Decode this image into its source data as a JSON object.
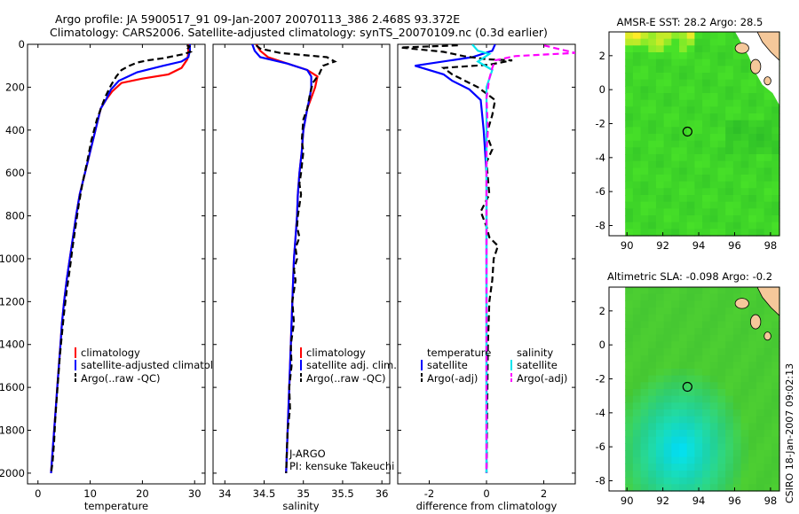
{
  "header": {
    "line1": "Argo profile: JA 5900517_91 09-Jan-2007 20070113_386 2.468S 93.372E",
    "line2": "Climatology: CARS2006. Satellite-adjusted climatology: synTS_20070109.nc (0.3d earlier)"
  },
  "footer": {
    "stamp": "CSIRO 18-Jan-2007 09:02:13"
  },
  "colors": {
    "climatology": "#ff0000",
    "satellite": "#0000ff",
    "argo": "#000000",
    "sal_satellite": "#00e5ee",
    "sal_argo": "#ff00ff"
  },
  "chart_data": [
    {
      "id": "temperature",
      "type": "line",
      "xlabel": "temperature",
      "xlim": [
        -2,
        32
      ],
      "ylim": [
        2050,
        0
      ],
      "xticks": [
        0,
        10,
        20,
        30
      ],
      "yticks": [
        0,
        200,
        400,
        600,
        800,
        1000,
        1200,
        1400,
        1600,
        1800,
        2000
      ],
      "legend": {
        "placement": "bottom-right",
        "entries": [
          "climatology",
          "satellite-adjusted climatology",
          "Argo(..raw -QC)"
        ]
      },
      "series": [
        {
          "name": "climatology",
          "color": "#ff0000",
          "style": "solid",
          "points": [
            [
              28.8,
              0
            ],
            [
              28.8,
              40
            ],
            [
              28.6,
              70
            ],
            [
              27.5,
              110
            ],
            [
              25,
              140
            ],
            [
              20,
              160
            ],
            [
              16,
              180
            ],
            [
              14.2,
              220
            ],
            [
              13,
              260
            ],
            [
              12,
              300
            ],
            [
              11,
              400
            ],
            [
              10,
              500
            ],
            [
              9,
              600
            ],
            [
              8,
              700
            ],
            [
              7.3,
              800
            ],
            [
              6.7,
              900
            ],
            [
              6.1,
              1000
            ],
            [
              5.5,
              1100
            ],
            [
              5,
              1200
            ],
            [
              4.6,
              1300
            ],
            [
              4.3,
              1400
            ],
            [
              4,
              1500
            ],
            [
              3.7,
              1600
            ],
            [
              3.4,
              1700
            ],
            [
              3.1,
              1800
            ],
            [
              2.8,
              1900
            ],
            [
              2.5,
              2000
            ]
          ]
        },
        {
          "name": "satellite",
          "color": "#0000ff",
          "style": "solid",
          "points": [
            [
              29.1,
              0
            ],
            [
              29.1,
              30
            ],
            [
              28.8,
              60
            ],
            [
              27.5,
              80
            ],
            [
              24,
              100
            ],
            [
              19,
              130
            ],
            [
              15.5,
              170
            ],
            [
              14,
              210
            ],
            [
              13,
              260
            ],
            [
              12,
              300
            ],
            [
              11,
              400
            ],
            [
              10,
              500
            ],
            [
              9,
              600
            ],
            [
              8,
              700
            ],
            [
              7.3,
              800
            ],
            [
              6.7,
              900
            ],
            [
              6.1,
              1000
            ],
            [
              5.5,
              1100
            ],
            [
              5,
              1200
            ],
            [
              4.6,
              1300
            ],
            [
              4.3,
              1400
            ],
            [
              4,
              1500
            ],
            [
              3.7,
              1600
            ],
            [
              3.4,
              1700
            ],
            [
              3.1,
              1800
            ],
            [
              2.8,
              1900
            ],
            [
              2.5,
              2000
            ]
          ]
        },
        {
          "name": "Argo(..raw -QC)",
          "color": "#000000",
          "style": "dashed",
          "points": [
            [
              28.5,
              5
            ],
            [
              29,
              10
            ],
            [
              28.5,
              25
            ],
            [
              29.2,
              35
            ],
            [
              28,
              45
            ],
            [
              26,
              55
            ],
            [
              24,
              65
            ],
            [
              21,
              75
            ],
            [
              19,
              85
            ],
            [
              17.5,
              100
            ],
            [
              16,
              120
            ],
            [
              15,
              150
            ],
            [
              14,
              190
            ],
            [
              13,
              240
            ],
            [
              12.5,
              270
            ],
            [
              11.3,
              350
            ],
            [
              10.2,
              450
            ],
            [
              9.4,
              550
            ],
            [
              8.5,
              650
            ],
            [
              7.8,
              750
            ],
            [
              7.2,
              850
            ],
            [
              6.6,
              950
            ],
            [
              6.1,
              1050
            ],
            [
              5.5,
              1150
            ],
            [
              5,
              1250
            ],
            [
              4.6,
              1350
            ],
            [
              4.2,
              1450
            ],
            [
              3.9,
              1550
            ],
            [
              3.6,
              1650
            ],
            [
              3.3,
              1750
            ],
            [
              3.1,
              1850
            ],
            [
              2.8,
              1950
            ],
            [
              2.5,
              2000
            ]
          ]
        }
      ]
    },
    {
      "id": "salinity",
      "type": "line",
      "xlabel": "salinity",
      "xlim": [
        33.85,
        36.1
      ],
      "ylim": [
        2050,
        0
      ],
      "xticks": [
        34,
        34.5,
        35,
        35.5,
        36
      ],
      "xticklabels": [
        "34",
        "34.5",
        "35",
        "35.5",
        "36"
      ],
      "legend": {
        "placement": "bottom-right",
        "entries": [
          "climatology",
          "satellite adj. clim.",
          "Argo(..raw -QC)"
        ]
      },
      "annotation": [
        "J-ARGO",
        "PI: kensuke Takeuchi"
      ],
      "series": [
        {
          "name": "climatology",
          "color": "#ff0000",
          "style": "solid",
          "points": [
            [
              34.4,
              0
            ],
            [
              34.45,
              30
            ],
            [
              34.55,
              60
            ],
            [
              34.8,
              90
            ],
            [
              35.05,
              120
            ],
            [
              35.18,
              150
            ],
            [
              35.15,
              200
            ],
            [
              35.1,
              250
            ],
            [
              35.05,
              300
            ],
            [
              35,
              400
            ],
            [
              34.98,
              500
            ],
            [
              34.95,
              600
            ],
            [
              34.93,
              700
            ],
            [
              34.92,
              800
            ],
            [
              34.9,
              900
            ],
            [
              34.88,
              1000
            ],
            [
              34.86,
              1200
            ],
            [
              34.84,
              1400
            ],
            [
              34.82,
              1600
            ],
            [
              34.8,
              1800
            ],
            [
              34.78,
              2000
            ]
          ]
        },
        {
          "name": "satellite",
          "color": "#0000ff",
          "style": "solid",
          "points": [
            [
              34.35,
              0
            ],
            [
              34.38,
              30
            ],
            [
              34.45,
              60
            ],
            [
              34.8,
              90
            ],
            [
              35.05,
              120
            ],
            [
              35.1,
              150
            ],
            [
              35.1,
              200
            ],
            [
              35.08,
              250
            ],
            [
              35.05,
              300
            ],
            [
              35,
              400
            ],
            [
              34.98,
              500
            ],
            [
              34.95,
              600
            ],
            [
              34.93,
              700
            ],
            [
              34.92,
              800
            ],
            [
              34.9,
              900
            ],
            [
              34.88,
              1000
            ],
            [
              34.86,
              1200
            ],
            [
              34.84,
              1400
            ],
            [
              34.82,
              1600
            ],
            [
              34.8,
              1800
            ],
            [
              34.78,
              2000
            ]
          ]
        },
        {
          "name": "Argo(..raw -QC)",
          "color": "#000000",
          "style": "dashed",
          "points": [
            [
              34.4,
              5
            ],
            [
              34.45,
              20
            ],
            [
              34.7,
              40
            ],
            [
              35.3,
              60
            ],
            [
              35.4,
              80
            ],
            [
              35.25,
              100
            ],
            [
              35.2,
              140
            ],
            [
              35.12,
              180
            ],
            [
              35.08,
              240
            ],
            [
              35.05,
              300
            ],
            [
              35,
              350
            ],
            [
              34.98,
              450
            ],
            [
              35,
              500
            ],
            [
              34.97,
              600
            ],
            [
              34.95,
              650
            ],
            [
              34.97,
              700
            ],
            [
              34.93,
              800
            ],
            [
              34.92,
              850
            ],
            [
              34.95,
              900
            ],
            [
              34.9,
              950
            ],
            [
              34.92,
              1000
            ],
            [
              34.88,
              1050
            ],
            [
              34.9,
              1100
            ],
            [
              34.86,
              1200
            ],
            [
              34.88,
              1300
            ],
            [
              34.84,
              1400
            ],
            [
              34.85,
              1500
            ],
            [
              34.82,
              1600
            ],
            [
              34.83,
              1700
            ],
            [
              34.8,
              1800
            ],
            [
              34.79,
              1900
            ],
            [
              34.78,
              2000
            ]
          ]
        }
      ]
    },
    {
      "id": "difference",
      "type": "line",
      "xlabel": "difference from climatology",
      "xlim": [
        -3.1,
        3.1
      ],
      "ylim": [
        2050,
        0
      ],
      "xticks": [
        -2,
        0,
        2
      ],
      "legend": {
        "placement": "bottom",
        "entries": [
          "temperature",
          "satellite",
          "Argo(-adj)",
          "salinity",
          "satellite",
          "Argo(-adj)"
        ]
      },
      "series": [
        {
          "name": "temperature satellite",
          "color": "#0000ff",
          "style": "solid",
          "points": [
            [
              0.3,
              0
            ],
            [
              0.2,
              30
            ],
            [
              -0.5,
              60
            ],
            [
              -2.5,
              100
            ],
            [
              -1.5,
              140
            ],
            [
              -1.2,
              170
            ],
            [
              -0.6,
              210
            ],
            [
              -0.2,
              260
            ],
            [
              -0.1,
              400
            ],
            [
              0,
              600
            ],
            [
              0,
              2000
            ]
          ]
        },
        {
          "name": "temperature Argo(-adj)",
          "color": "#000000",
          "style": "dashed",
          "points": [
            [
              -1,
              5
            ],
            [
              -3,
              15
            ],
            [
              -1.5,
              35
            ],
            [
              -0.8,
              55
            ],
            [
              0,
              70
            ],
            [
              0.9,
              75
            ],
            [
              0.1,
              95
            ],
            [
              -1.5,
              110
            ],
            [
              -1.2,
              140
            ],
            [
              -0.3,
              200
            ],
            [
              0.3,
              260
            ],
            [
              0.2,
              330
            ],
            [
              0,
              420
            ],
            [
              0.2,
              490
            ],
            [
              0,
              550
            ],
            [
              0.1,
              700
            ],
            [
              -0.2,
              780
            ],
            [
              0,
              850
            ],
            [
              0.1,
              900
            ],
            [
              0.4,
              940
            ],
            [
              0.25,
              1000
            ],
            [
              0.2,
              1100
            ],
            [
              0.1,
              1200
            ],
            [
              0.05,
              1400
            ],
            [
              0,
              2000
            ]
          ]
        },
        {
          "name": "salinity satellite",
          "color": "#00e5ee",
          "style": "solid",
          "points": [
            [
              -0.5,
              0
            ],
            [
              -0.3,
              30
            ],
            [
              0.1,
              45
            ],
            [
              -0.3,
              80
            ],
            [
              0.2,
              120
            ],
            [
              0,
              200
            ],
            [
              0,
              400
            ],
            [
              0,
              2000
            ]
          ]
        },
        {
          "name": "salinity Argo(-adj)",
          "color": "#ff00ff",
          "style": "dashed",
          "points": [
            [
              2,
              5
            ],
            [
              3.1,
              40
            ],
            [
              1,
              55
            ],
            [
              0.3,
              75
            ],
            [
              0.2,
              110
            ],
            [
              0.1,
              160
            ],
            [
              0,
              250
            ],
            [
              0.05,
              400
            ],
            [
              0,
              500
            ],
            [
              0,
              2000
            ]
          ]
        }
      ]
    },
    {
      "id": "amsr_sst",
      "type": "heatmap",
      "title": "AMSR-E SST: 28.2  Argo: 28.5",
      "xlim": [
        89,
        98.5
      ],
      "ylim": [
        -8.6,
        3.4
      ],
      "xticks": [
        90,
        92,
        94,
        96,
        98
      ],
      "yticks": [
        2,
        0,
        -2,
        -4,
        -6,
        -8
      ],
      "valid_x_from": 89.9,
      "marker": {
        "lon": 93.372,
        "lat": -2.468
      }
    },
    {
      "id": "altimetric_sla",
      "type": "heatmap",
      "title": "Altimetric SLA: -0.098  Argo: -0.2",
      "xlim": [
        89,
        98.5
      ],
      "ylim": [
        -8.6,
        3.4
      ],
      "xticks": [
        90,
        92,
        94,
        96,
        98
      ],
      "yticks": [
        2,
        0,
        -2,
        -4,
        -6,
        -8
      ],
      "valid_x_from": 89.9,
      "marker": {
        "lon": 93.372,
        "lat": -2.468
      }
    }
  ]
}
